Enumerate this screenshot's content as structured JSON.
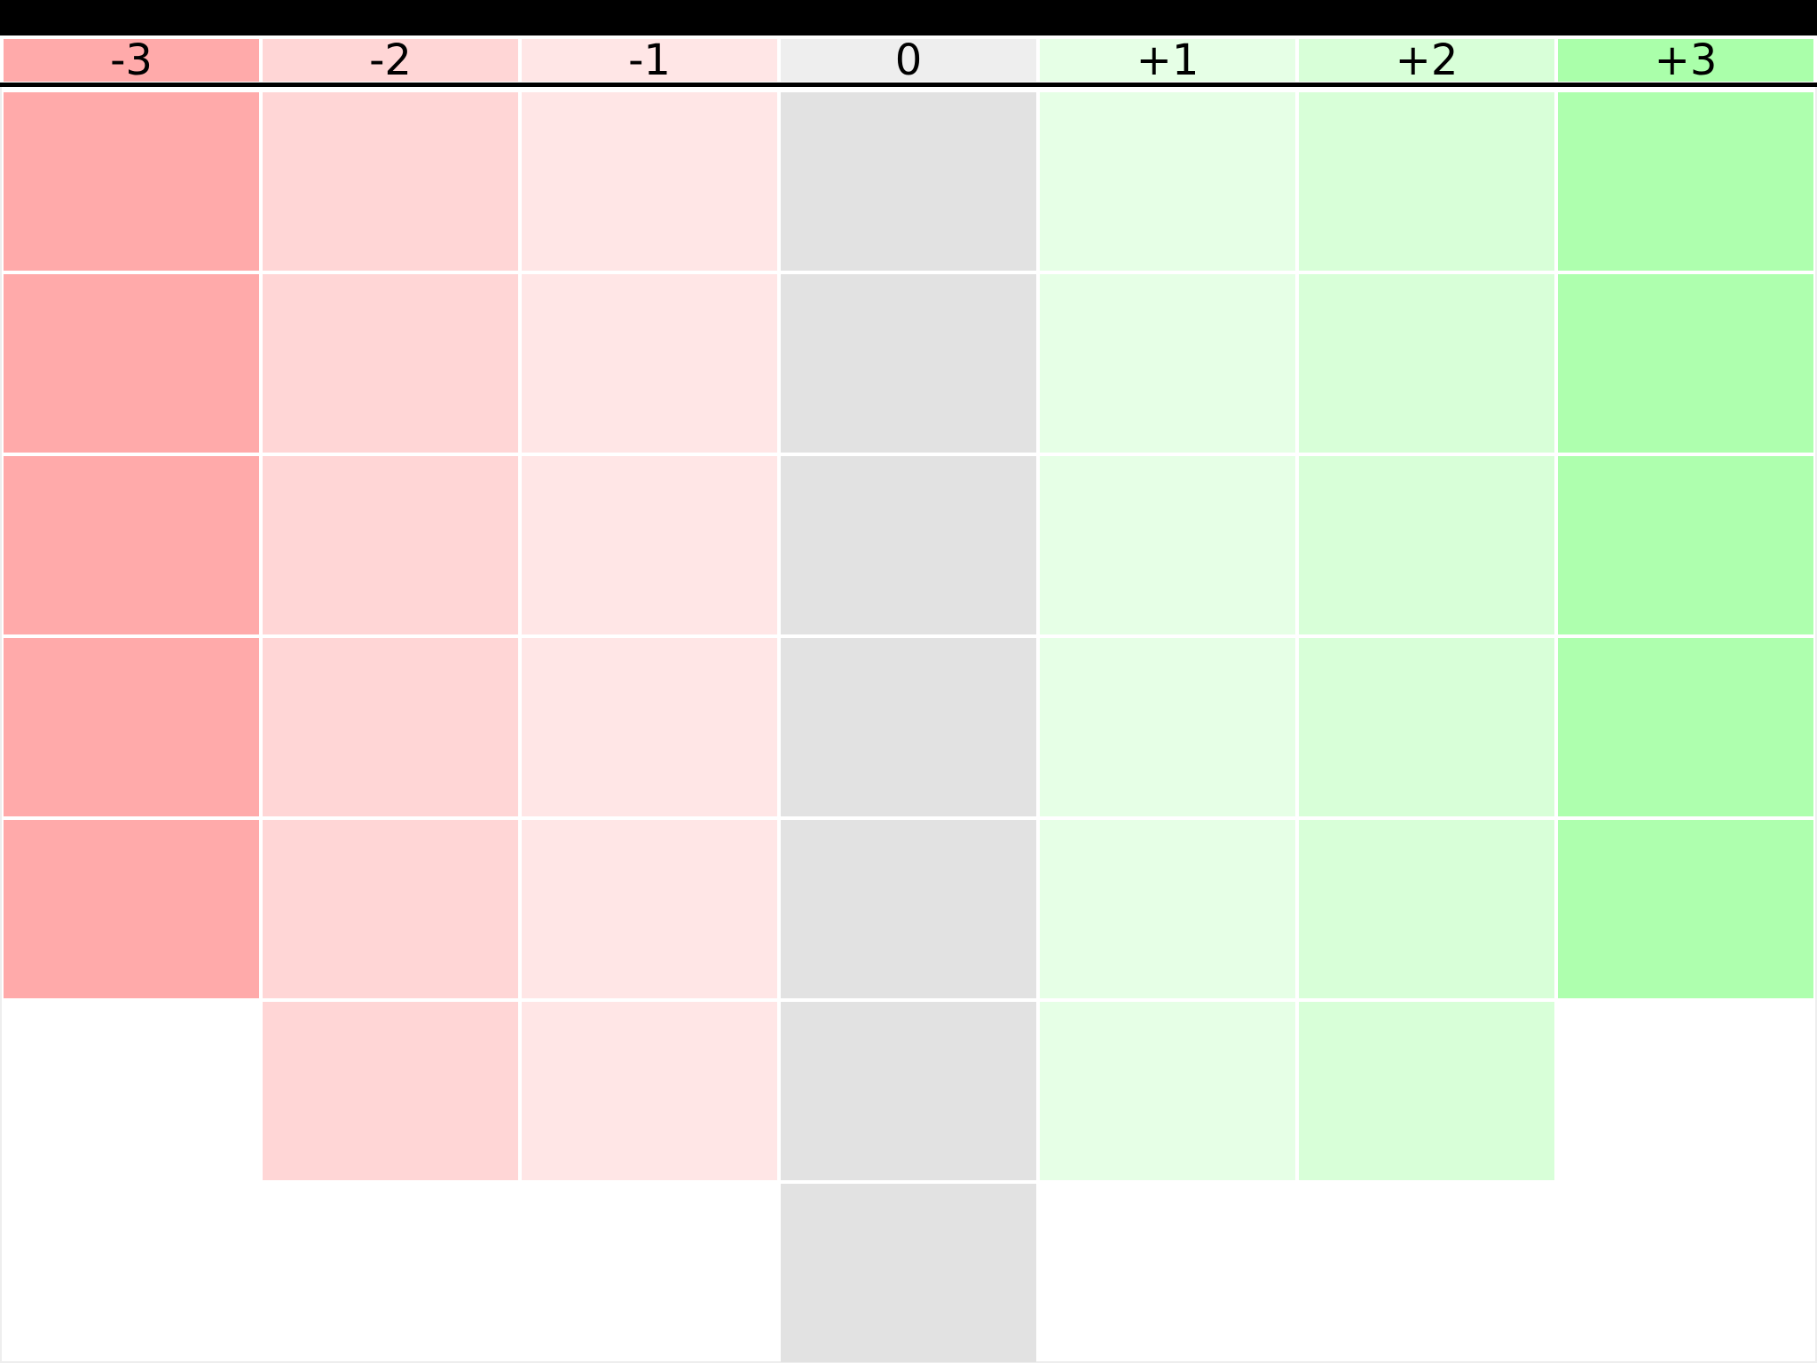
{
  "scale": {
    "columns": [
      {
        "label": "-3",
        "header_color": "#ffaaaa",
        "cell_color": "#ffaaaa",
        "slots": 5
      },
      {
        "label": "-2",
        "header_color": "#ffd6d6",
        "cell_color": "#ffd6d6",
        "slots": 6
      },
      {
        "label": "-1",
        "header_color": "#ffe6e6",
        "cell_color": "#ffe6e6",
        "slots": 6
      },
      {
        "label": "0",
        "header_color": "#eeeeee",
        "cell_color": "#e2e2e2",
        "slots": 7
      },
      {
        "label": "+1",
        "header_color": "#e6ffe6",
        "cell_color": "#e6ffe6",
        "slots": 6
      },
      {
        "label": "+2",
        "header_color": "#d8ffd8",
        "cell_color": "#d8ffd8",
        "slots": 6
      },
      {
        "label": "+3",
        "header_color": "#aaffaa",
        "cell_color": "#aeffae",
        "slots": 5
      }
    ]
  }
}
